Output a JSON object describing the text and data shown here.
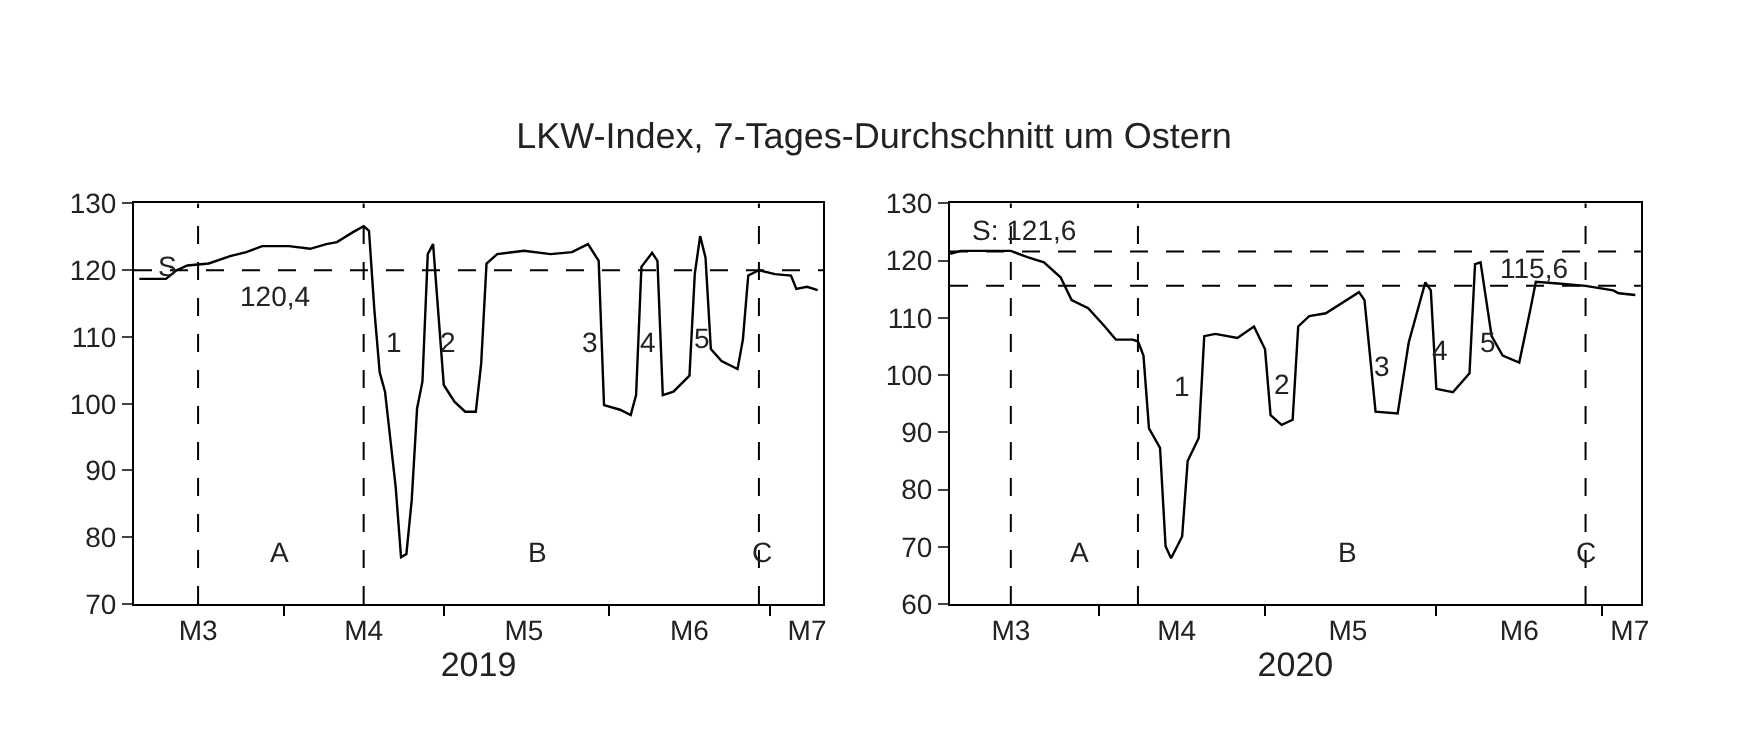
{
  "chart_data": [
    {
      "type": "line",
      "title": "LKW-Index, 7-Tages-Durchschnitt um Ostern",
      "xlabel": "2019",
      "x": [
        "2019-03-05",
        "2019-03-10",
        "2019-03-12",
        "2019-03-14",
        "2019-03-18",
        "2019-03-22",
        "2019-03-25",
        "2019-03-28",
        "2019-04-02",
        "2019-04-06",
        "2019-04-09",
        "2019-04-11",
        "2019-04-14",
        "2019-04-16",
        "2019-04-17",
        "2019-04-18",
        "2019-04-19",
        "2019-04-20",
        "2019-04-22",
        "2019-04-23",
        "2019-04-24",
        "2019-04-25",
        "2019-04-26",
        "2019-04-27",
        "2019-04-28",
        "2019-04-29",
        "2019-05-01",
        "2019-05-03",
        "2019-05-05",
        "2019-05-07",
        "2019-05-08",
        "2019-05-09",
        "2019-05-11",
        "2019-05-16",
        "2019-05-21",
        "2019-05-25",
        "2019-05-28",
        "2019-05-30",
        "2019-05-31",
        "2019-06-03",
        "2019-06-05",
        "2019-06-06",
        "2019-06-07",
        "2019-06-09",
        "2019-06-10",
        "2019-06-11",
        "2019-06-13",
        "2019-06-16",
        "2019-06-17",
        "2019-06-18",
        "2019-06-19",
        "2019-06-20",
        "2019-06-22",
        "2019-06-25",
        "2019-06-26",
        "2019-06-27",
        "2019-06-29",
        "2019-07-02",
        "2019-07-05",
        "2019-07-06",
        "2019-07-08",
        "2019-07-10"
      ],
      "series": [
        {
          "color": "#000000",
          "values": [
            118.7,
            118.7,
            120,
            120.7,
            121,
            122.1,
            122.7,
            123.6,
            123.6,
            123.2,
            123.9,
            124.2,
            125.7,
            126.6,
            125.9,
            114.1,
            104.7,
            101.8,
            87.5,
            77,
            77.5,
            85.6,
            99.3,
            103.3,
            122.4,
            123.9,
            102.8,
            100.3,
            98.8,
            98.8,
            106,
            121,
            122.4,
            122.9,
            122.4,
            122.7,
            123.9,
            121.4,
            99.8,
            99.1,
            98.3,
            101.3,
            120.5,
            122.6,
            121.4,
            101.3,
            101.8,
            104.2,
            119.5,
            125.1,
            121.9,
            108.2,
            106.4,
            105.2,
            109.6,
            119.2,
            120,
            119.4,
            119.2,
            117.2,
            117.5,
            117
          ]
        }
      ],
      "xlim": [
        "2019-03-04",
        "2019-07-11"
      ],
      "xticks": [
        {
          "value": "2019-03-16",
          "label": "M3"
        },
        {
          "value": "2019-04-01",
          "label": null
        },
        {
          "value": "2019-04-16",
          "label": "M4"
        },
        {
          "value": "2019-05-01",
          "label": null
        },
        {
          "value": "2019-05-16",
          "label": "M5"
        },
        {
          "value": "2019-06-01",
          "label": null
        },
        {
          "value": "2019-06-16",
          "label": "M6"
        },
        {
          "value": "2019-07-01",
          "label": null
        },
        {
          "value": "2019-07-08",
          "label": "M7"
        }
      ],
      "ylim": [
        70,
        130
      ],
      "yticks": [
        70,
        80,
        90,
        100,
        110,
        120,
        130
      ],
      "marker": "none",
      "line_style": "solid",
      "ref_lines": [
        {
          "axis": "x",
          "value": "2019-03-16",
          "line_style": "dashed",
          "color": "#000000"
        },
        {
          "axis": "x",
          "value": "2019-04-16",
          "line_style": "dashed",
          "color": "#000000"
        },
        {
          "axis": "x",
          "value": "2019-06-29",
          "line_style": "dashed",
          "color": "#000000"
        },
        {
          "axis": "y",
          "value": 120,
          "line_style": "dashed",
          "color": "#000000"
        }
      ],
      "annotations": [
        "S",
        "120,4",
        "1",
        "2",
        "3",
        "4",
        "5",
        "A",
        "B",
        "C"
      ]
    },
    {
      "type": "line",
      "xlabel": "2020",
      "x": [
        "2020-03-05",
        "2020-03-07",
        "2020-03-16",
        "2020-03-19",
        "2020-03-22",
        "2020-03-25",
        "2020-03-27",
        "2020-03-30",
        "2020-04-02",
        "2020-04-04",
        "2020-04-07",
        "2020-04-08",
        "2020-04-09",
        "2020-04-10",
        "2020-04-12",
        "2020-04-13",
        "2020-04-14",
        "2020-04-16",
        "2020-04-17",
        "2020-04-19",
        "2020-04-20",
        "2020-04-22",
        "2020-04-26",
        "2020-04-29",
        "2020-05-01",
        "2020-05-02",
        "2020-05-04",
        "2020-05-06",
        "2020-05-07",
        "2020-05-09",
        "2020-05-12",
        "2020-05-18",
        "2020-05-19",
        "2020-05-21",
        "2020-05-25",
        "2020-05-27",
        "2020-05-30",
        "2020-05-31",
        "2020-06-01",
        "2020-06-04",
        "2020-06-07",
        "2020-06-08",
        "2020-06-09",
        "2020-06-11",
        "2020-06-13",
        "2020-06-16",
        "2020-06-18",
        "2020-06-19",
        "2020-06-23",
        "2020-06-28",
        "2020-07-03",
        "2020-07-04",
        "2020-07-07"
      ],
      "series": [
        {
          "color": "#000000",
          "values": [
            121.2,
            121.7,
            121.7,
            120.6,
            119.7,
            117.1,
            113.1,
            111.7,
            108.5,
            106.2,
            106.2,
            105.9,
            103.4,
            90.7,
            87.3,
            70.1,
            68,
            71.8,
            85,
            89,
            106.8,
            107.2,
            106.5,
            108.5,
            104.5,
            93,
            91.3,
            92.2,
            108.5,
            110.3,
            110.8,
            114.5,
            113.1,
            93.6,
            93.3,
            105.7,
            116.2,
            114.8,
            97.6,
            97,
            100.3,
            119.4,
            119.7,
            106.8,
            103.4,
            102.2,
            111.4,
            116.3,
            116,
            115.6,
            114.8,
            114.3,
            114
          ]
        }
      ],
      "xlim": [
        "2020-03-05",
        "2020-07-08"
      ],
      "xticks": [
        {
          "value": "2020-03-16",
          "label": "M3"
        },
        {
          "value": "2020-04-01",
          "label": null
        },
        {
          "value": "2020-04-15",
          "label": "M4"
        },
        {
          "value": "2020-05-01",
          "label": null
        },
        {
          "value": "2020-05-16",
          "label": "M5"
        },
        {
          "value": "2020-06-01",
          "label": null
        },
        {
          "value": "2020-06-16",
          "label": "M6"
        },
        {
          "value": "2020-07-01",
          "label": null
        },
        {
          "value": "2020-07-06",
          "label": "M7"
        }
      ],
      "ylim": [
        60,
        130
      ],
      "yticks": [
        60,
        70,
        80,
        90,
        100,
        110,
        120,
        130
      ],
      "marker": "none",
      "line_style": "solid",
      "ref_lines": [
        {
          "axis": "x",
          "value": "2020-03-16",
          "line_style": "dashed",
          "color": "#000000"
        },
        {
          "axis": "x",
          "value": "2020-04-08",
          "line_style": "dashed",
          "color": "#000000"
        },
        {
          "axis": "x",
          "value": "2020-06-28",
          "line_style": "dashed",
          "color": "#000000"
        },
        {
          "axis": "y",
          "value": 121.6,
          "line_style": "dashed",
          "color": "#000000",
          "label": "S: 121,6"
        },
        {
          "axis": "y",
          "value": 115.6,
          "line_style": "dashed",
          "color": "#000000",
          "label": "115,6"
        }
      ],
      "annotations": [
        "1",
        "2",
        "3",
        "4",
        "5",
        "A",
        "B",
        "C"
      ]
    }
  ]
}
